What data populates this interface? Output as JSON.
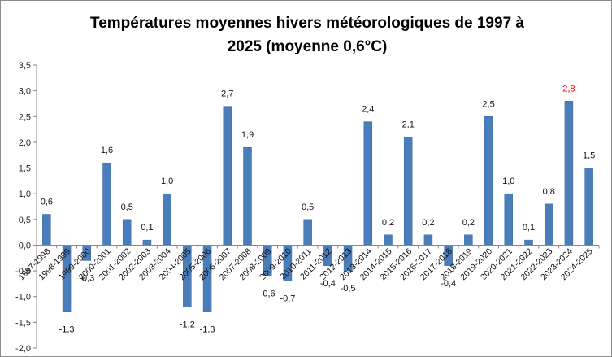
{
  "chart_data": {
    "type": "bar",
    "title_line1": "Températures moyennes hivers météorologiques de 1997 à",
    "title_line2": "2025 (moyenne 0,6°C)",
    "xlabel": "",
    "ylabel": "",
    "ylim": [
      -2.0,
      3.5
    ],
    "ytick_step": 0.5,
    "grid": false,
    "legend": "none",
    "bar_color": "#4a7ebb",
    "highlight_label_color": "#ff0000",
    "highlight_index": 26,
    "categories": [
      "1997-1998",
      "1998-1999",
      "1999-2000",
      "2000-2001",
      "2001-2002",
      "2002-2003",
      "2003-2004",
      "2004-2005",
      "2005-2006",
      "2006-2007",
      "2007-2008",
      "2008-2009",
      "2009-2010",
      "2010-2011",
      "2011-2012",
      "2012-2013",
      "2013-2014",
      "2014-2015",
      "2015-2016",
      "2016-2017",
      "2017-2018",
      "2018-2019",
      "2019-2020",
      "2020-2021",
      "2021-2022",
      "2022-2023",
      "2023-2024",
      "2024-2025"
    ],
    "values": [
      0.6,
      -1.3,
      -0.3,
      1.6,
      0.5,
      0.1,
      1.0,
      -1.2,
      -1.3,
      2.7,
      1.9,
      -0.6,
      -0.7,
      0.5,
      -0.4,
      -0.5,
      2.4,
      0.2,
      2.1,
      0.2,
      -0.4,
      0.2,
      2.5,
      1.0,
      0.1,
      0.8,
      2.8,
      1.5
    ],
    "data_labels": [
      "0,6",
      "-1,3",
      "-0,3",
      "1,6",
      "0,5",
      "0,1",
      "1,0",
      "-1,2",
      "-1,3",
      "2,7",
      "1,9",
      "-0,6",
      "-0,7",
      "0,5",
      "-0,4",
      "-0,5",
      "2,4",
      "0,2",
      "2,1",
      "0,2",
      "-0,4",
      "0,2",
      "2,5",
      "1,0",
      "0,1",
      "0,8",
      "2,8",
      "1,5"
    ],
    "ytick_labels": [
      "-2,0",
      "-1,5",
      "-1,0",
      "-0,5",
      "0,0",
      "0,5",
      "1,0",
      "1,5",
      "2,0",
      "2,5",
      "3,0",
      "3,5"
    ]
  }
}
